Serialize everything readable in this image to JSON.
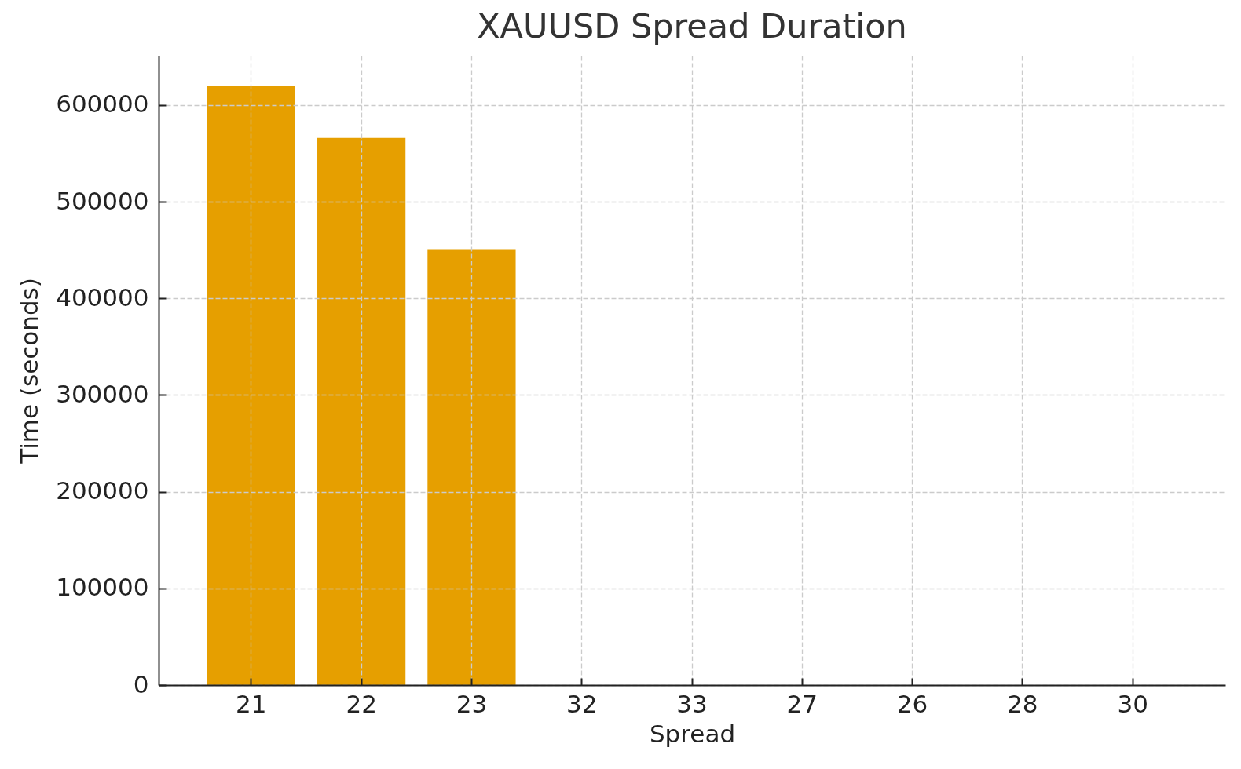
{
  "chart_data": {
    "type": "bar",
    "title": "XAUUSD Spread Duration",
    "xlabel": "Spread",
    "ylabel": "Time (seconds)",
    "categories": [
      "21",
      "22",
      "23",
      "32",
      "33",
      "27",
      "26",
      "28",
      "30"
    ],
    "values": [
      620000,
      566000,
      451000,
      0,
      0,
      0,
      0,
      0,
      0
    ],
    "color": "#e69f00",
    "ylim": [
      0,
      651000
    ],
    "yticks": [
      0,
      100000,
      200000,
      300000,
      400000,
      500000,
      600000
    ],
    "grid": true
  }
}
